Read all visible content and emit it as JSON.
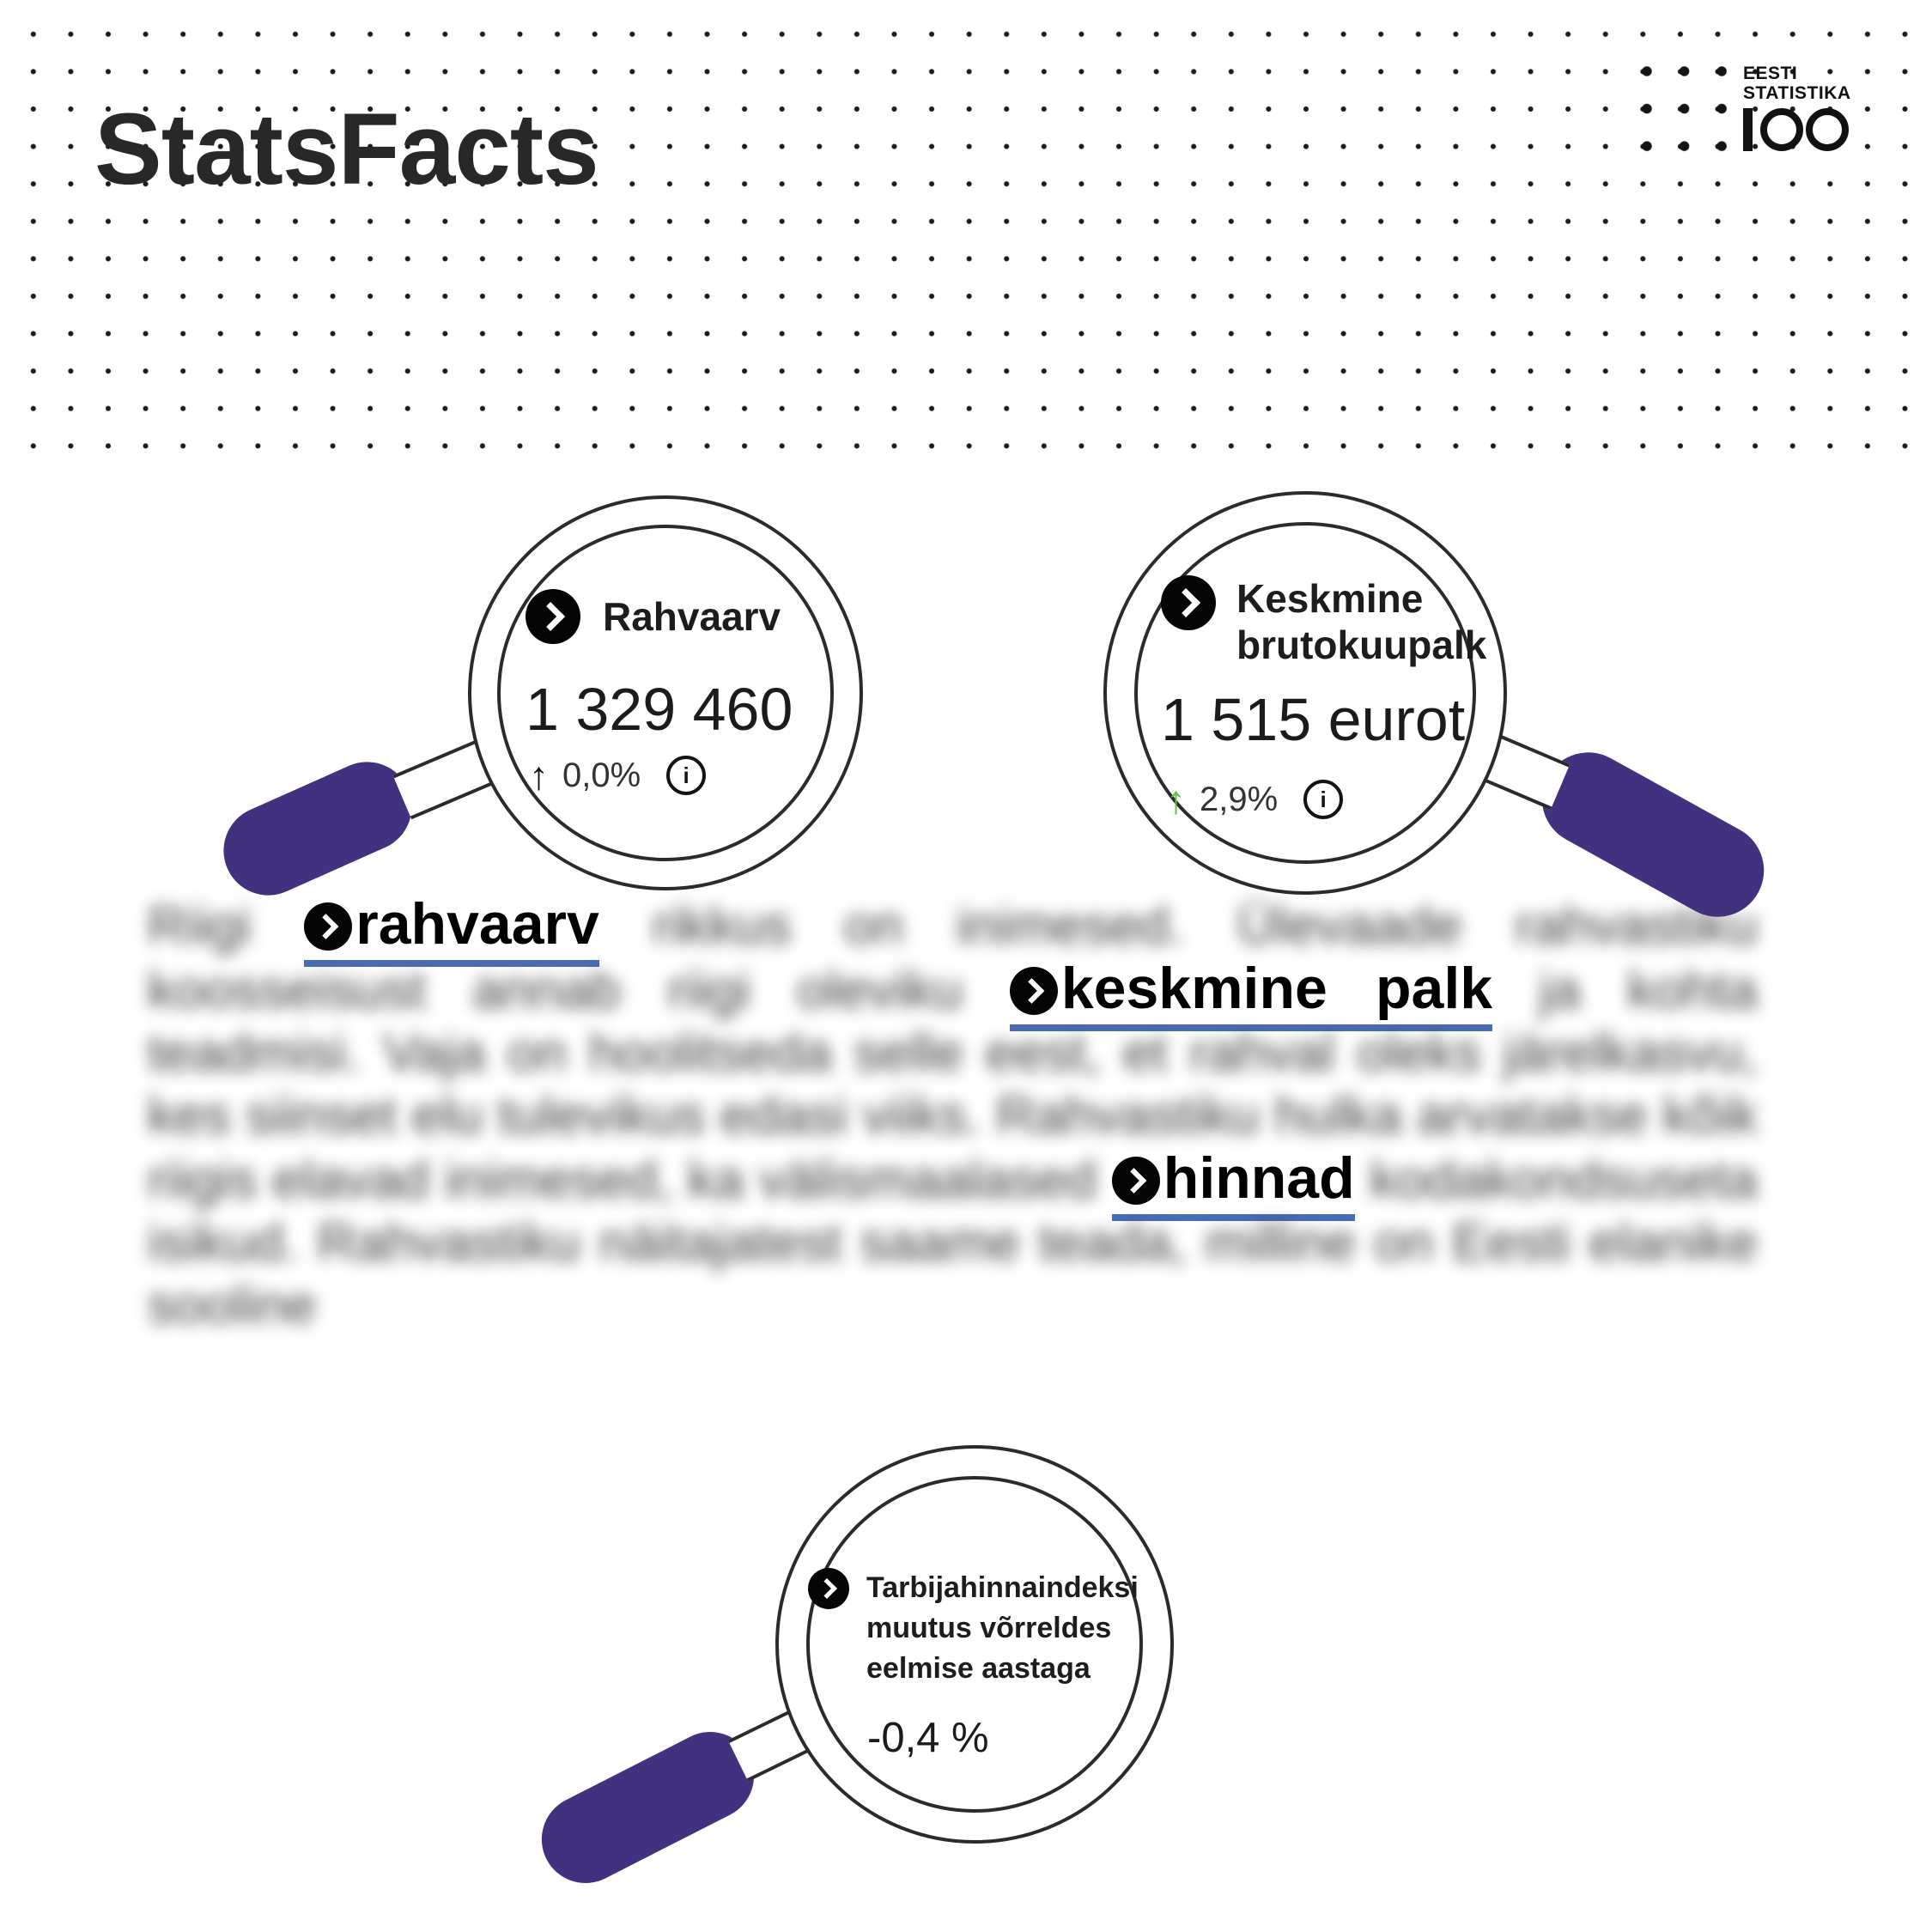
{
  "page": {
    "title": "StatsFacts"
  },
  "logo": {
    "line1": "EESTI",
    "line2": "STATISTIKA",
    "number_label": "100"
  },
  "magnifiers": {
    "population": {
      "label": "Rahvaarv",
      "value": "1 329 460",
      "delta": "0,0%",
      "delta_direction": "up",
      "delta_color": "#161616",
      "arrow_glyph": "↑",
      "info_glyph": "i"
    },
    "salary": {
      "label": "Keskmine brutokuupalk",
      "value": "1 515 eurot",
      "delta": "2,9%",
      "delta_direction": "up",
      "delta_color": "#63BE4B",
      "arrow_glyph": "↑",
      "info_glyph": "i"
    },
    "cpi": {
      "label": "Tarbijahinnaindeksi muutus võrreldes eelmise aastaga",
      "value": "-0,4 %"
    }
  },
  "paragraph": {
    "blurred": true,
    "underline_color": "#4A6CB3",
    "segments": [
      {
        "type": "text",
        "text": "Riigi "
      },
      {
        "type": "link",
        "text": "rahvaarv"
      },
      {
        "type": "text",
        "text": " rikkus on inimesed. Ülevaade rahvastiku koosseisust annab riigi oleviku "
      },
      {
        "type": "link",
        "text": "keskmine palk"
      },
      {
        "type": "text",
        "text": " ja kohta teadmisi. Vaja on hoolitseda selle eest, et rahval oleks järelkasvu, kes siinset elu tulevikus edasi viiks. Rahvastiku hulka arvatakse kõik riigis elavad inimesed, ka välismaalased "
      },
      {
        "type": "link",
        "text": "hinnad"
      },
      {
        "type": "text",
        "text": " kodakondsuseta isikud. Rahvastiku näitajatest saame teada, milline on Eesti elanike sooline"
      }
    ]
  },
  "colors": {
    "handle_purple": "#42317E",
    "link_underline": "#4A6CB3",
    "delta_up_green": "#63BE4B",
    "ink": "#1a1a1a"
  }
}
